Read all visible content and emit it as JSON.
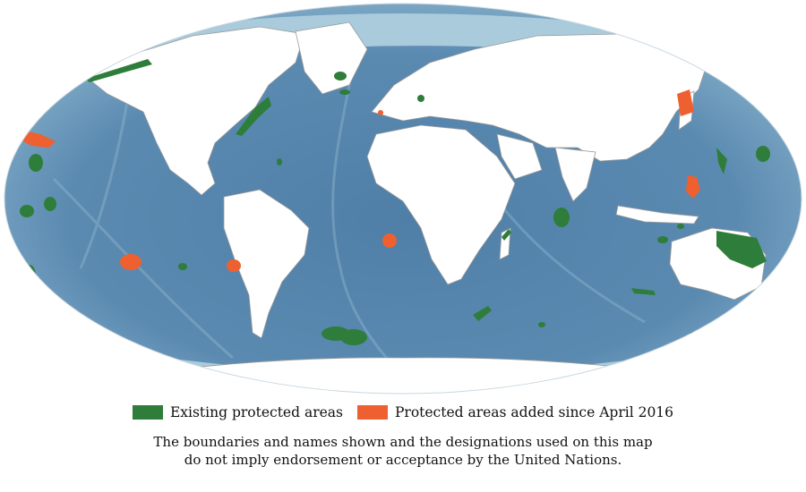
{
  "colors": {
    "ocean_deep": "#3d6b93",
    "ocean_mid": "#5a89b0",
    "ocean_shallow": "#a9cbdc",
    "land": "#ffffff",
    "border": "#9a9a9a",
    "existing": "#2e7d3a",
    "added": "#ef6030"
  },
  "legend": {
    "existing_label": "Existing protected areas",
    "added_label": "Protected areas added since April 2016"
  },
  "disclaimer": {
    "line1": "The boundaries and names shown and the designations used on this map",
    "line2": "do not imply endorsement or acceptance by the United Nations."
  }
}
